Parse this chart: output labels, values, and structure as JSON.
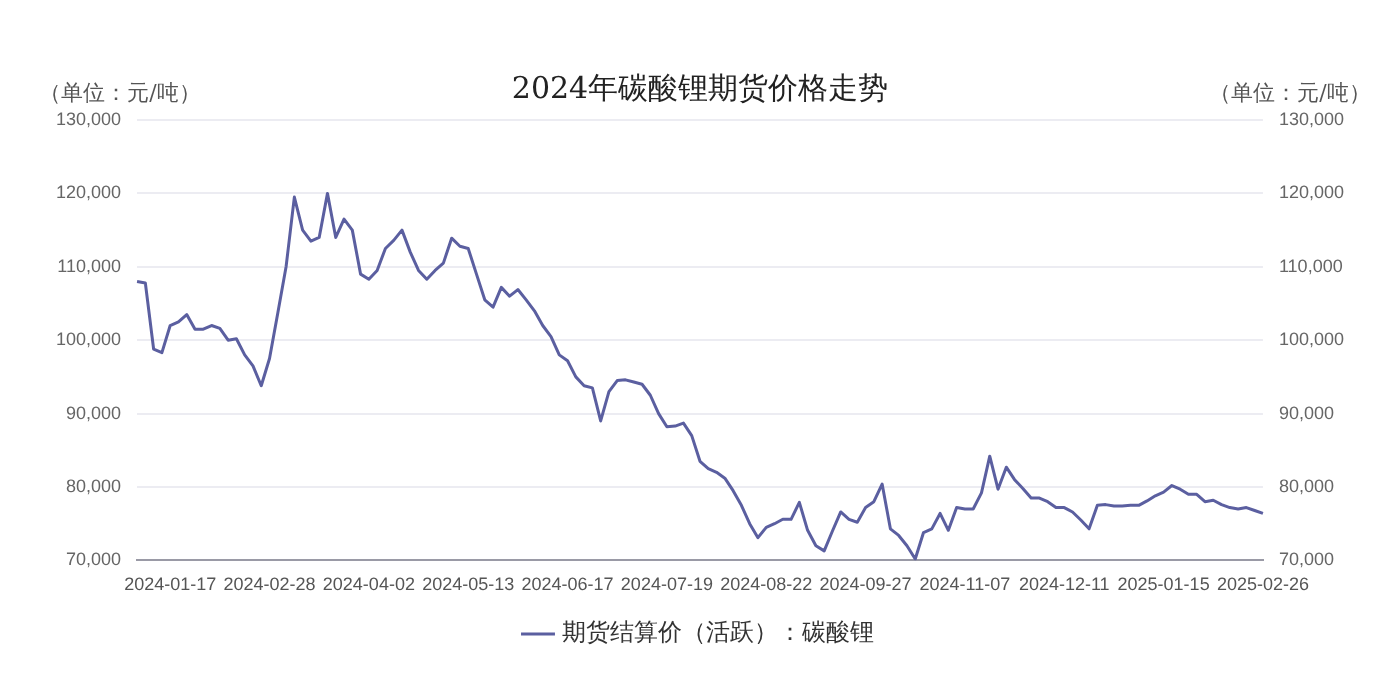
{
  "chart_data": {
    "type": "line",
    "title": "2024年碳酸锂期货价格走势",
    "ylabel": "（单位：元/吨）",
    "y2label": "（单位：元/吨）",
    "categories": [
      null,
      null,
      null,
      null,
      "2024-01-17",
      null,
      null,
      null,
      null,
      null,
      null,
      null,
      null,
      null,
      null,
      null,
      "2024-02-28",
      null,
      null,
      null,
      null,
      null,
      null,
      null,
      null,
      null,
      null,
      null,
      "2024-04-02",
      null,
      null,
      null,
      null,
      null,
      null,
      null,
      null,
      null,
      null,
      null,
      "2024-05-13",
      null,
      null,
      null,
      null,
      null,
      null,
      null,
      null,
      null,
      null,
      null,
      "2024-06-17",
      null,
      null,
      null,
      null,
      null,
      null,
      null,
      null,
      null,
      null,
      null,
      "2024-07-19",
      null,
      null,
      null,
      null,
      null,
      null,
      null,
      null,
      null,
      null,
      null,
      "2024-08-22",
      null,
      null,
      null,
      null,
      null,
      null,
      null,
      null,
      null,
      null,
      null,
      "2024-09-27",
      null,
      null,
      null,
      null,
      null,
      null,
      null,
      null,
      null,
      null,
      null,
      "2024-11-07",
      null,
      null,
      null,
      null,
      null,
      null,
      null,
      null,
      null,
      null,
      null,
      "2024-12-11",
      null,
      null,
      null,
      null,
      null,
      null,
      null,
      null,
      null,
      null,
      null,
      "2025-01-15",
      null,
      null,
      null,
      null,
      null,
      null,
      null,
      null,
      null,
      null,
      null,
      "2025-02-26"
    ],
    "series": [
      {
        "name": "期货结算价（活跃）：碳酸锂",
        "color": "#5b5fa0",
        "values": [
          108000,
          107800,
          98800,
          98300,
          102000,
          102500,
          103500,
          101500,
          101500,
          102000,
          101600,
          100000,
          100200,
          98000,
          96500,
          93800,
          97500,
          103700,
          110000,
          119500,
          115000,
          113500,
          114000,
          120000,
          114000,
          116500,
          115000,
          109000,
          108300,
          109500,
          112500,
          113600,
          115000,
          112000,
          109500,
          108300,
          109500,
          110500,
          113900,
          112800,
          112500,
          109000,
          105500,
          104500,
          107200,
          106000,
          106900,
          105500,
          104000,
          102000,
          100500,
          98000,
          97200,
          95000,
          93800,
          93500,
          89000,
          93000,
          94500,
          94600,
          94300,
          94000,
          92500,
          90000,
          88200,
          88300,
          88700,
          87000,
          83500,
          82500,
          82000,
          81200,
          79500,
          77500,
          75000,
          73100,
          74500,
          75000,
          75600,
          75600,
          77900,
          74100,
          72000,
          71300,
          74000,
          76600,
          75600,
          75200,
          77200,
          78000,
          80400,
          74300,
          73400,
          72000,
          70200,
          73800,
          74300,
          76400,
          74100,
          77200,
          77000,
          77000,
          79200,
          84200,
          79700,
          82700,
          81000,
          79800,
          78500,
          78500,
          78000,
          77200,
          77200,
          76600,
          75500,
          74300,
          77500,
          77600,
          77400,
          77400,
          77500,
          77500,
          78100,
          78800,
          79300,
          80200,
          79700,
          79000,
          79000,
          78000,
          78200,
          77600,
          77200,
          77000,
          77200,
          76800,
          76400
        ]
      }
    ],
    "ylim": [
      70000,
      130000
    ],
    "yticks": [
      {
        "value": 70000,
        "label": "70,000"
      },
      {
        "value": 80000,
        "label": "80,000"
      },
      {
        "value": 90000,
        "label": "90,000"
      },
      {
        "value": 100000,
        "label": "100,000"
      },
      {
        "value": 110000,
        "label": "110,000"
      },
      {
        "value": 120000,
        "label": "120,000"
      },
      {
        "value": 130000,
        "label": "130,000"
      }
    ],
    "y2lim": [
      70000,
      130000
    ],
    "y2ticks": [
      {
        "value": 70000,
        "label": "70,000"
      },
      {
        "value": 80000,
        "label": "80,000"
      },
      {
        "value": 90000,
        "label": "90,000"
      },
      {
        "value": 100000,
        "label": "100,000"
      },
      {
        "value": 110000,
        "label": "110,000"
      },
      {
        "value": 120000,
        "label": "120,000"
      },
      {
        "value": 130000,
        "label": "130,000"
      }
    ],
    "grid": "y",
    "legend": "bottom"
  }
}
